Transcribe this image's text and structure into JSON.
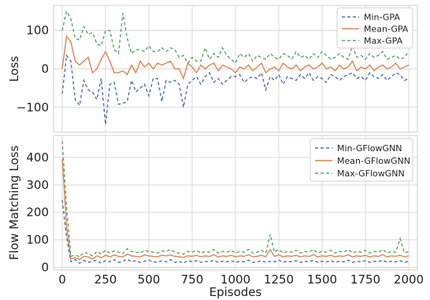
{
  "chart_data": [
    {
      "type": "line",
      "ylabel": "Loss",
      "xlabel": "",
      "xlim": [
        -50,
        2050
      ],
      "ylim": [
        -165,
        165
      ],
      "xticks": [
        0,
        250,
        500,
        750,
        1000,
        1250,
        1500,
        1750,
        2000
      ],
      "xtick_labels": [
        "",
        "",
        "",
        "",
        "",
        "",
        "",
        "",
        ""
      ],
      "yticks": [
        -100,
        0,
        100
      ],
      "ytick_labels": [
        "−100",
        "0",
        "100"
      ],
      "grid": true,
      "legend_position": "top-right",
      "x": [
        0,
        25,
        50,
        75,
        100,
        125,
        150,
        175,
        200,
        225,
        250,
        275,
        300,
        325,
        350,
        375,
        400,
        425,
        450,
        475,
        500,
        525,
        550,
        575,
        600,
        625,
        650,
        675,
        700,
        725,
        750,
        775,
        800,
        825,
        850,
        875,
        900,
        925,
        950,
        975,
        1000,
        1025,
        1050,
        1075,
        1100,
        1125,
        1150,
        1175,
        1200,
        1225,
        1250,
        1275,
        1300,
        1325,
        1350,
        1375,
        1400,
        1425,
        1450,
        1475,
        1500,
        1525,
        1550,
        1575,
        1600,
        1625,
        1650,
        1675,
        1700,
        1725,
        1750,
        1775,
        1800,
        1825,
        1850,
        1875,
        1900,
        1925,
        1950,
        1975,
        2000
      ],
      "series": [
        {
          "name": "Min-GPA",
          "color": "#4c72b0",
          "dash": "dashed",
          "values": [
            -65,
            35,
            20,
            -80,
            -95,
            -30,
            -55,
            -60,
            -80,
            -25,
            -145,
            -40,
            -35,
            -92,
            -90,
            -85,
            -30,
            -60,
            -50,
            -40,
            -70,
            -25,
            -25,
            -85,
            -30,
            -35,
            -30,
            -40,
            -100,
            -40,
            -30,
            -20,
            -40,
            -20,
            -10,
            -35,
            -25,
            -40,
            -30,
            -20,
            -20,
            -15,
            -35,
            -25,
            -20,
            -25,
            -10,
            -55,
            -20,
            -30,
            -15,
            -40,
            -20,
            -25,
            -30,
            -15,
            -25,
            -10,
            -30,
            -20,
            -25,
            -35,
            -15,
            -20,
            -30,
            -20,
            -15,
            -10,
            -25,
            -20,
            -30,
            -10,
            -20,
            -25,
            -15,
            -30,
            -20,
            -10,
            -15,
            -30,
            -25
          ]
        },
        {
          "name": "Mean-GPA",
          "color": "#dd8452",
          "dash": "solid",
          "values": [
            0,
            85,
            70,
            20,
            10,
            20,
            30,
            -10,
            0,
            25,
            45,
            20,
            -10,
            -10,
            -5,
            -15,
            10,
            -10,
            20,
            5,
            15,
            0,
            15,
            10,
            15,
            20,
            0,
            0,
            -25,
            15,
            5,
            -10,
            10,
            0,
            10,
            15,
            -5,
            10,
            5,
            0,
            -10,
            5,
            0,
            10,
            -5,
            5,
            15,
            -10,
            0,
            5,
            -5,
            15,
            5,
            0,
            10,
            -5,
            5,
            10,
            0,
            5,
            15,
            0,
            5,
            -5,
            10,
            0,
            5,
            20,
            -5,
            5,
            0,
            10,
            -5,
            5,
            10,
            0,
            5,
            15,
            0,
            5,
            10
          ]
        },
        {
          "name": "Max-GPA",
          "color": "#55a868",
          "dash": "dashed",
          "values": [
            100,
            150,
            130,
            80,
            75,
            110,
            90,
            95,
            65,
            60,
            100,
            100,
            50,
            40,
            145,
            80,
            40,
            50,
            50,
            45,
            60,
            45,
            45,
            55,
            45,
            55,
            50,
            30,
            35,
            15,
            30,
            20,
            20,
            55,
            25,
            40,
            30,
            55,
            35,
            25,
            15,
            40,
            30,
            40,
            20,
            35,
            30,
            25,
            40,
            30,
            25,
            40,
            35,
            25,
            45,
            30,
            35,
            25,
            40,
            30,
            45,
            35,
            25,
            30,
            40,
            30,
            25,
            60,
            30,
            35,
            25,
            40,
            30,
            35,
            45,
            25,
            30,
            35,
            25,
            30,
            45
          ]
        }
      ]
    },
    {
      "type": "line",
      "ylabel": "Flow Matching Loss",
      "xlabel": "Episodes",
      "xlim": [
        -50,
        2050
      ],
      "ylim": [
        -10,
        480
      ],
      "xticks": [
        0,
        250,
        500,
        750,
        1000,
        1250,
        1500,
        1750,
        2000
      ],
      "xtick_labels": [
        "0",
        "250",
        "500",
        "750",
        "1000",
        "1250",
        "1500",
        "1750",
        "2000"
      ],
      "yticks": [
        0,
        100,
        200,
        300,
        400
      ],
      "ytick_labels": [
        "0",
        "100",
        "200",
        "300",
        "400"
      ],
      "grid": true,
      "legend_position": "top-right",
      "x": [
        0,
        25,
        50,
        75,
        100,
        125,
        150,
        175,
        200,
        225,
        250,
        275,
        300,
        325,
        350,
        375,
        400,
        425,
        450,
        475,
        500,
        525,
        550,
        575,
        600,
        625,
        650,
        675,
        700,
        725,
        750,
        775,
        800,
        825,
        850,
        875,
        900,
        925,
        950,
        975,
        1000,
        1025,
        1050,
        1075,
        1100,
        1125,
        1150,
        1175,
        1200,
        1225,
        1250,
        1275,
        1300,
        1325,
        1350,
        1375,
        1400,
        1425,
        1450,
        1475,
        1500,
        1525,
        1550,
        1575,
        1600,
        1625,
        1650,
        1675,
        1700,
        1725,
        1750,
        1775,
        1800,
        1825,
        1850,
        1875,
        1900,
        1925,
        1950,
        1975,
        2000
      ],
      "series": [
        {
          "name": "Min-GFlowGNN",
          "color": "#4c72b0",
          "dash": "dashed",
          "values": [
            245,
            110,
            20,
            28,
            15,
            25,
            18,
            22,
            26,
            15,
            24,
            20,
            28,
            18,
            22,
            30,
            20,
            25,
            18,
            22,
            26,
            20,
            18,
            24,
            20,
            28,
            18,
            22,
            15,
            25,
            20,
            24,
            18,
            22,
            20,
            26,
            18,
            22,
            20,
            24,
            18,
            22,
            20,
            26,
            18,
            20,
            24,
            18,
            22,
            20,
            26,
            18,
            22,
            20,
            24,
            18,
            22,
            20,
            26,
            18,
            22,
            20,
            24,
            18,
            22,
            20,
            26,
            18,
            22,
            20,
            24,
            18,
            22,
            20,
            26,
            18,
            22,
            20,
            24,
            18,
            22
          ]
        },
        {
          "name": "Mean-GFlowGNN",
          "color": "#dd8452",
          "dash": "solid",
          "values": [
            395,
            150,
            30,
            35,
            28,
            40,
            38,
            30,
            42,
            35,
            44,
            38,
            45,
            40,
            38,
            48,
            42,
            40,
            38,
            45,
            42,
            40,
            38,
            44,
            42,
            45,
            40,
            38,
            36,
            42,
            40,
            44,
            38,
            42,
            40,
            46,
            38,
            42,
            40,
            44,
            38,
            42,
            40,
            46,
            38,
            40,
            44,
            38,
            65,
            40,
            46,
            38,
            42,
            40,
            44,
            38,
            42,
            40,
            46,
            38,
            42,
            40,
            44,
            38,
            42,
            40,
            46,
            38,
            42,
            40,
            44,
            38,
            42,
            40,
            46,
            38,
            42,
            40,
            44,
            38,
            42
          ]
        },
        {
          "name": "Max-GFlowGNN",
          "color": "#55a868",
          "dash": "dashed",
          "values": [
            460,
            220,
            40,
            45,
            38,
            55,
            50,
            42,
            58,
            48,
            62,
            52,
            60,
            55,
            50,
            68,
            58,
            55,
            52,
            62,
            58,
            55,
            52,
            60,
            58,
            65,
            55,
            52,
            48,
            58,
            55,
            62,
            52,
            58,
            55,
            65,
            52,
            58,
            55,
            62,
            52,
            58,
            55,
            65,
            52,
            55,
            62,
            52,
            120,
            55,
            65,
            52,
            58,
            55,
            62,
            52,
            58,
            55,
            65,
            52,
            58,
            55,
            62,
            52,
            58,
            55,
            65,
            52,
            58,
            55,
            62,
            52,
            58,
            55,
            65,
            52,
            58,
            55,
            105,
            52,
            58
          ]
        }
      ]
    }
  ]
}
